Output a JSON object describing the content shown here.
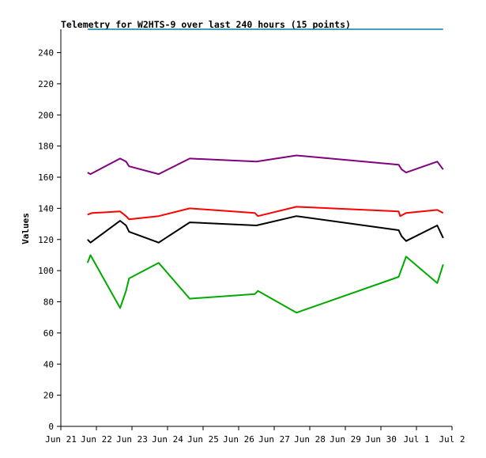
{
  "chart_data": {
    "type": "line",
    "title": "Telemetry for W2HTS-9 over last 240 hours (15 points)",
    "ylabel": "Values",
    "xlabel": "",
    "ylim": [
      0,
      255
    ],
    "yticks": [
      0,
      20,
      40,
      60,
      80,
      100,
      120,
      140,
      160,
      180,
      200,
      220,
      240
    ],
    "xlim": [
      "2024-06-21T00:00",
      "2024-07-02T00:00"
    ],
    "xtick_labels": [
      "Jun 21",
      "Jun 22",
      "Jun 23",
      "Jun 24",
      "Jun 25",
      "Jun 26",
      "Jun 27",
      "Jun 28",
      "Jun 29",
      "Jun 30",
      "Jul 1",
      "Jul 2"
    ],
    "grid": false,
    "series": [
      {
        "color": "#800080",
        "points": [
          [
            "2024-06-21T18:00",
            163
          ],
          [
            "2024-06-21T20:00",
            162
          ],
          [
            "2024-06-22T16:00",
            172
          ],
          [
            "2024-06-22T20:00",
            170
          ],
          [
            "2024-06-22T22:00",
            167
          ],
          [
            "2024-06-23T18:00",
            162
          ],
          [
            "2024-06-24T15:00",
            172
          ],
          [
            "2024-06-26T12:00",
            170
          ],
          [
            "2024-06-27T15:00",
            174
          ],
          [
            "2024-06-30T12:00",
            168
          ],
          [
            "2024-06-30T14:00",
            165
          ],
          [
            "2024-06-30T17:00",
            163
          ],
          [
            "2024-07-01T14:00",
            170
          ],
          [
            "2024-07-01T18:00",
            165
          ]
        ]
      },
      {
        "color": "#ff0000",
        "points": [
          [
            "2024-06-21T18:00",
            136
          ],
          [
            "2024-06-21T21:00",
            137
          ],
          [
            "2024-06-22T16:00",
            138
          ],
          [
            "2024-06-22T20:00",
            135
          ],
          [
            "2024-06-22T22:00",
            133
          ],
          [
            "2024-06-23T18:00",
            135
          ],
          [
            "2024-06-24T15:00",
            140
          ],
          [
            "2024-06-26T11:00",
            137
          ],
          [
            "2024-06-26T13:00",
            135
          ],
          [
            "2024-06-27T15:00",
            141
          ],
          [
            "2024-06-30T12:00",
            138
          ],
          [
            "2024-06-30T13:00",
            135
          ],
          [
            "2024-06-30T17:00",
            137
          ],
          [
            "2024-07-01T14:00",
            139
          ],
          [
            "2024-07-01T18:00",
            137
          ]
        ]
      },
      {
        "color": "#000000",
        "points": [
          [
            "2024-06-21T18:00",
            120
          ],
          [
            "2024-06-21T20:00",
            118
          ],
          [
            "2024-06-22T16:00",
            132
          ],
          [
            "2024-06-22T20:00",
            129
          ],
          [
            "2024-06-22T22:00",
            125
          ],
          [
            "2024-06-23T18:00",
            118
          ],
          [
            "2024-06-24T15:00",
            131
          ],
          [
            "2024-06-26T12:00",
            129
          ],
          [
            "2024-06-27T15:00",
            135
          ],
          [
            "2024-06-30T12:00",
            126
          ],
          [
            "2024-06-30T14:00",
            122
          ],
          [
            "2024-06-30T17:00",
            119
          ],
          [
            "2024-07-01T14:00",
            129
          ],
          [
            "2024-07-01T18:00",
            121
          ]
        ]
      },
      {
        "color": "#00aa00",
        "points": [
          [
            "2024-06-21T18:00",
            105
          ],
          [
            "2024-06-21T20:00",
            110
          ],
          [
            "2024-06-22T16:00",
            76
          ],
          [
            "2024-06-22T20:00",
            87
          ],
          [
            "2024-06-22T22:00",
            95
          ],
          [
            "2024-06-23T18:00",
            105
          ],
          [
            "2024-06-24T15:00",
            82
          ],
          [
            "2024-06-26T11:00",
            85
          ],
          [
            "2024-06-26T13:00",
            87
          ],
          [
            "2024-06-27T15:00",
            73
          ],
          [
            "2024-06-30T12:00",
            96
          ],
          [
            "2024-06-30T17:00",
            109
          ],
          [
            "2024-07-01T14:00",
            92
          ],
          [
            "2024-07-01T18:00",
            104
          ]
        ]
      },
      {
        "color": "#0080a0",
        "points": [
          [
            "2024-06-21T18:00",
            255
          ],
          [
            "2024-07-01T18:00",
            255
          ]
        ]
      }
    ]
  }
}
